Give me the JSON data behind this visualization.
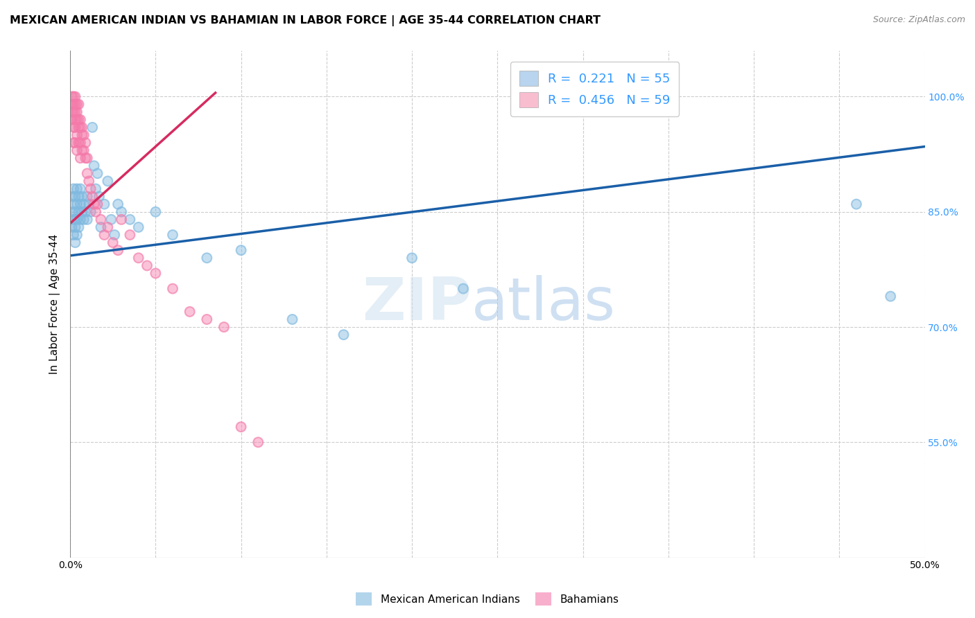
{
  "title": "MEXICAN AMERICAN INDIAN VS BAHAMIAN IN LABOR FORCE | AGE 35-44 CORRELATION CHART",
  "source": "Source: ZipAtlas.com",
  "ylabel": "In Labor Force | Age 35-44",
  "xlim": [
    0.0,
    0.5
  ],
  "ylim": [
    0.4,
    1.06
  ],
  "yticks": [
    0.55,
    0.7,
    0.85,
    1.0
  ],
  "ytick_labels": [
    "55.0%",
    "70.0%",
    "85.0%",
    "100.0%"
  ],
  "xtick_vals": [
    0.0,
    0.05,
    0.1,
    0.15,
    0.2,
    0.25,
    0.3,
    0.35,
    0.4,
    0.45,
    0.5
  ],
  "xtick_labels": [
    "0.0%",
    "",
    "",
    "",
    "",
    "",
    "",
    "",
    "",
    "",
    "50.0%"
  ],
  "blue_color": "#7fb9e0",
  "pink_color": "#f47aaa",
  "blue_line_color": "#1a5fa8",
  "pink_line_color": "#d62b60",
  "blue_legend_color": "#b8d4ee",
  "pink_legend_color": "#f9bdd0",
  "watermark_zip": "ZIP",
  "watermark_atlas": "atlas",
  "blue_scatter_x": [
    0.001,
    0.001,
    0.001,
    0.002,
    0.002,
    0.002,
    0.002,
    0.003,
    0.003,
    0.003,
    0.003,
    0.003,
    0.004,
    0.004,
    0.004,
    0.004,
    0.005,
    0.005,
    0.005,
    0.006,
    0.006,
    0.006,
    0.007,
    0.007,
    0.008,
    0.008,
    0.009,
    0.01,
    0.01,
    0.011,
    0.012,
    0.013,
    0.014,
    0.015,
    0.016,
    0.017,
    0.018,
    0.02,
    0.022,
    0.024,
    0.026,
    0.028,
    0.03,
    0.035,
    0.04,
    0.05,
    0.06,
    0.08,
    0.1,
    0.13,
    0.16,
    0.2,
    0.23,
    0.46,
    0.48
  ],
  "blue_scatter_y": [
    0.87,
    0.85,
    0.83,
    0.88,
    0.86,
    0.84,
    0.82,
    0.87,
    0.85,
    0.84,
    0.83,
    0.81,
    0.88,
    0.86,
    0.84,
    0.82,
    0.87,
    0.85,
    0.83,
    0.88,
    0.86,
    0.84,
    0.87,
    0.85,
    0.86,
    0.84,
    0.85,
    0.87,
    0.84,
    0.86,
    0.85,
    0.96,
    0.91,
    0.88,
    0.9,
    0.87,
    0.83,
    0.86,
    0.89,
    0.84,
    0.82,
    0.86,
    0.85,
    0.84,
    0.83,
    0.85,
    0.82,
    0.79,
    0.8,
    0.71,
    0.69,
    0.79,
    0.75,
    0.86,
    0.74
  ],
  "pink_scatter_x": [
    0.001,
    0.001,
    0.001,
    0.001,
    0.002,
    0.002,
    0.002,
    0.002,
    0.002,
    0.003,
    0.003,
    0.003,
    0.003,
    0.003,
    0.003,
    0.004,
    0.004,
    0.004,
    0.004,
    0.004,
    0.005,
    0.005,
    0.005,
    0.005,
    0.006,
    0.006,
    0.006,
    0.006,
    0.007,
    0.007,
    0.007,
    0.008,
    0.008,
    0.009,
    0.009,
    0.01,
    0.01,
    0.011,
    0.012,
    0.013,
    0.014,
    0.015,
    0.016,
    0.018,
    0.02,
    0.022,
    0.025,
    0.028,
    0.03,
    0.035,
    0.04,
    0.045,
    0.05,
    0.06,
    0.07,
    0.08,
    0.09,
    0.1,
    0.11
  ],
  "pink_scatter_y": [
    1.0,
    0.99,
    0.98,
    0.97,
    1.0,
    0.99,
    0.98,
    0.96,
    0.94,
    1.0,
    0.99,
    0.98,
    0.97,
    0.96,
    0.94,
    0.99,
    0.98,
    0.97,
    0.95,
    0.93,
    0.99,
    0.97,
    0.96,
    0.94,
    0.97,
    0.96,
    0.94,
    0.92,
    0.96,
    0.95,
    0.93,
    0.95,
    0.93,
    0.94,
    0.92,
    0.92,
    0.9,
    0.89,
    0.88,
    0.87,
    0.86,
    0.85,
    0.86,
    0.84,
    0.82,
    0.83,
    0.81,
    0.8,
    0.84,
    0.82,
    0.79,
    0.78,
    0.77,
    0.75,
    0.72,
    0.71,
    0.7,
    0.57,
    0.55
  ],
  "blue_line_x": [
    0.0,
    0.5
  ],
  "blue_line_y": [
    0.793,
    0.935
  ],
  "pink_line_x": [
    0.0,
    0.085
  ],
  "pink_line_y": [
    0.835,
    1.005
  ],
  "background_color": "#ffffff",
  "grid_color": "#cccccc",
  "title_fontsize": 11.5,
  "axis_label_fontsize": 11,
  "tick_fontsize": 10,
  "legend_fontsize": 13,
  "marker_size": 100,
  "marker_alpha": 0.45,
  "marker_linewidth": 1.5
}
